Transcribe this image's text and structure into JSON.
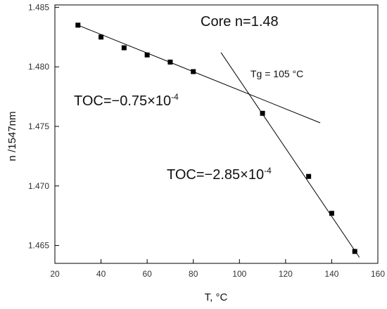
{
  "chart_data": {
    "type": "scatter",
    "xlabel": "T, °C",
    "ylabel": "n /1547nm",
    "xlim": [
      20,
      160
    ],
    "ylim": [
      1.4635,
      1.4852
    ],
    "x_ticks": [
      "20",
      "40",
      "60",
      "80",
      "100",
      "120",
      "140",
      "160"
    ],
    "y_ticks": [
      "1.465",
      "1.470",
      "1.475",
      "1.480",
      "1.485"
    ],
    "grid": false,
    "series": [
      {
        "x": [
          30,
          40,
          50,
          60,
          70,
          80,
          110,
          130,
          140,
          150
        ],
        "y": [
          1.4835,
          1.4825,
          1.4816,
          1.481,
          1.4804,
          1.4796,
          1.4761,
          1.4708,
          1.4677,
          1.4645
        ]
      }
    ],
    "fit_lines": [
      {
        "x": [
          30,
          135
        ],
        "y": [
          1.4835,
          1.4753
        ]
      },
      {
        "x": [
          92,
          152
        ],
        "y": [
          1.4812,
          1.464
        ]
      }
    ],
    "annotations": {
      "core": "Core n=1.48",
      "tg": "Tg = 105 °C",
      "toc1_base": "TOC=−0.75×10",
      "toc1_exp": "-4",
      "toc2_base": "TOC=−2.85×10",
      "toc2_exp": "-4"
    },
    "marker_color": "#000000",
    "line_color": "#000000"
  }
}
